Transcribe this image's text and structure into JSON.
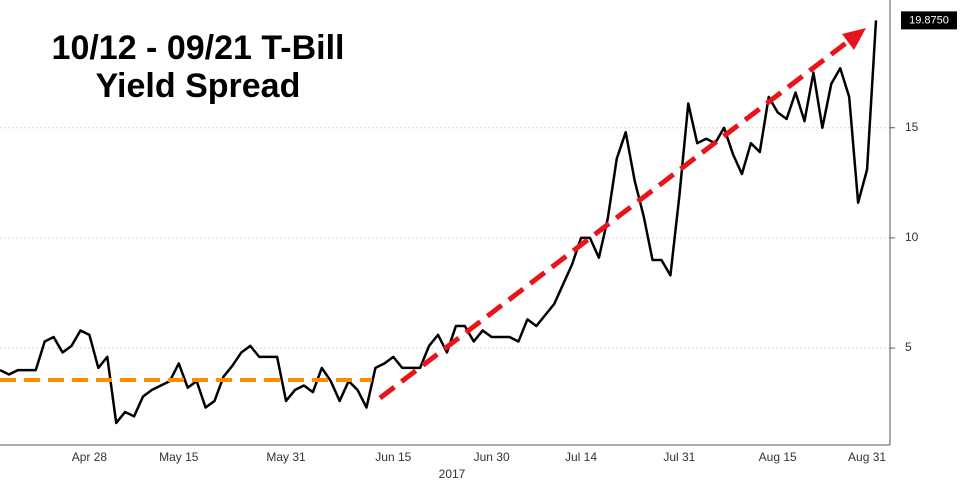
{
  "chart_data": {
    "type": "line",
    "title": [
      "10/12 - 09/21 T-Bill",
      "Yield Spread"
    ],
    "xlabel": "2017",
    "categories": [
      null,
      null,
      null,
      null,
      null,
      null,
      null,
      null,
      null,
      null,
      "Apr 28",
      null,
      null,
      null,
      null,
      null,
      null,
      null,
      null,
      null,
      "May 15",
      null,
      null,
      null,
      null,
      null,
      null,
      null,
      null,
      null,
      null,
      null,
      "May 31",
      null,
      null,
      null,
      null,
      null,
      null,
      null,
      null,
      null,
      null,
      null,
      "Jun 15",
      null,
      null,
      null,
      null,
      null,
      null,
      null,
      null,
      null,
      null,
      "Jun 30",
      null,
      null,
      null,
      null,
      null,
      null,
      null,
      null,
      null,
      "Jul 14",
      null,
      null,
      null,
      null,
      null,
      null,
      null,
      null,
      null,
      null,
      "Jul 31",
      null,
      null,
      null,
      null,
      null,
      null,
      null,
      null,
      null,
      null,
      "Aug 15",
      null,
      null,
      null,
      null,
      null,
      null,
      null,
      null,
      null,
      "Aug 31",
      null
    ],
    "values": [
      4.0,
      3.8,
      4.0,
      4.0,
      4.0,
      5.3,
      5.5,
      4.8,
      5.1,
      5.8,
      5.6,
      4.1,
      4.6,
      1.6,
      2.1,
      1.9,
      2.8,
      3.1,
      3.3,
      3.5,
      4.3,
      3.2,
      3.5,
      2.3,
      2.6,
      3.7,
      4.2,
      4.8,
      5.1,
      4.6,
      4.6,
      4.6,
      2.6,
      3.1,
      3.3,
      3.0,
      4.1,
      3.5,
      2.6,
      3.5,
      3.1,
      2.3,
      4.1,
      4.3,
      4.6,
      4.1,
      4.1,
      4.1,
      5.1,
      5.6,
      4.8,
      6.0,
      6.0,
      5.3,
      5.8,
      5.5,
      5.5,
      5.5,
      5.3,
      6.3,
      6.0,
      6.5,
      7.0,
      7.9,
      8.8,
      10.0,
      10.0,
      9.1,
      10.9,
      13.6,
      14.8,
      12.6,
      11.0,
      9.0,
      9.0,
      8.3,
      11.9,
      16.1,
      14.3,
      14.5,
      14.3,
      15.0,
      13.8,
      12.9,
      14.3,
      13.9,
      16.4,
      15.7,
      15.4,
      16.6,
      15.3,
      17.5,
      15.0,
      17.0,
      17.7,
      16.4,
      11.6,
      13.1,
      19.875
    ],
    "last_value_label": "19.8750",
    "color": "#000000",
    "ylim": [
      0.6,
      20.8
    ],
    "yticks": [
      5,
      10,
      15
    ],
    "grid": true
  }
}
